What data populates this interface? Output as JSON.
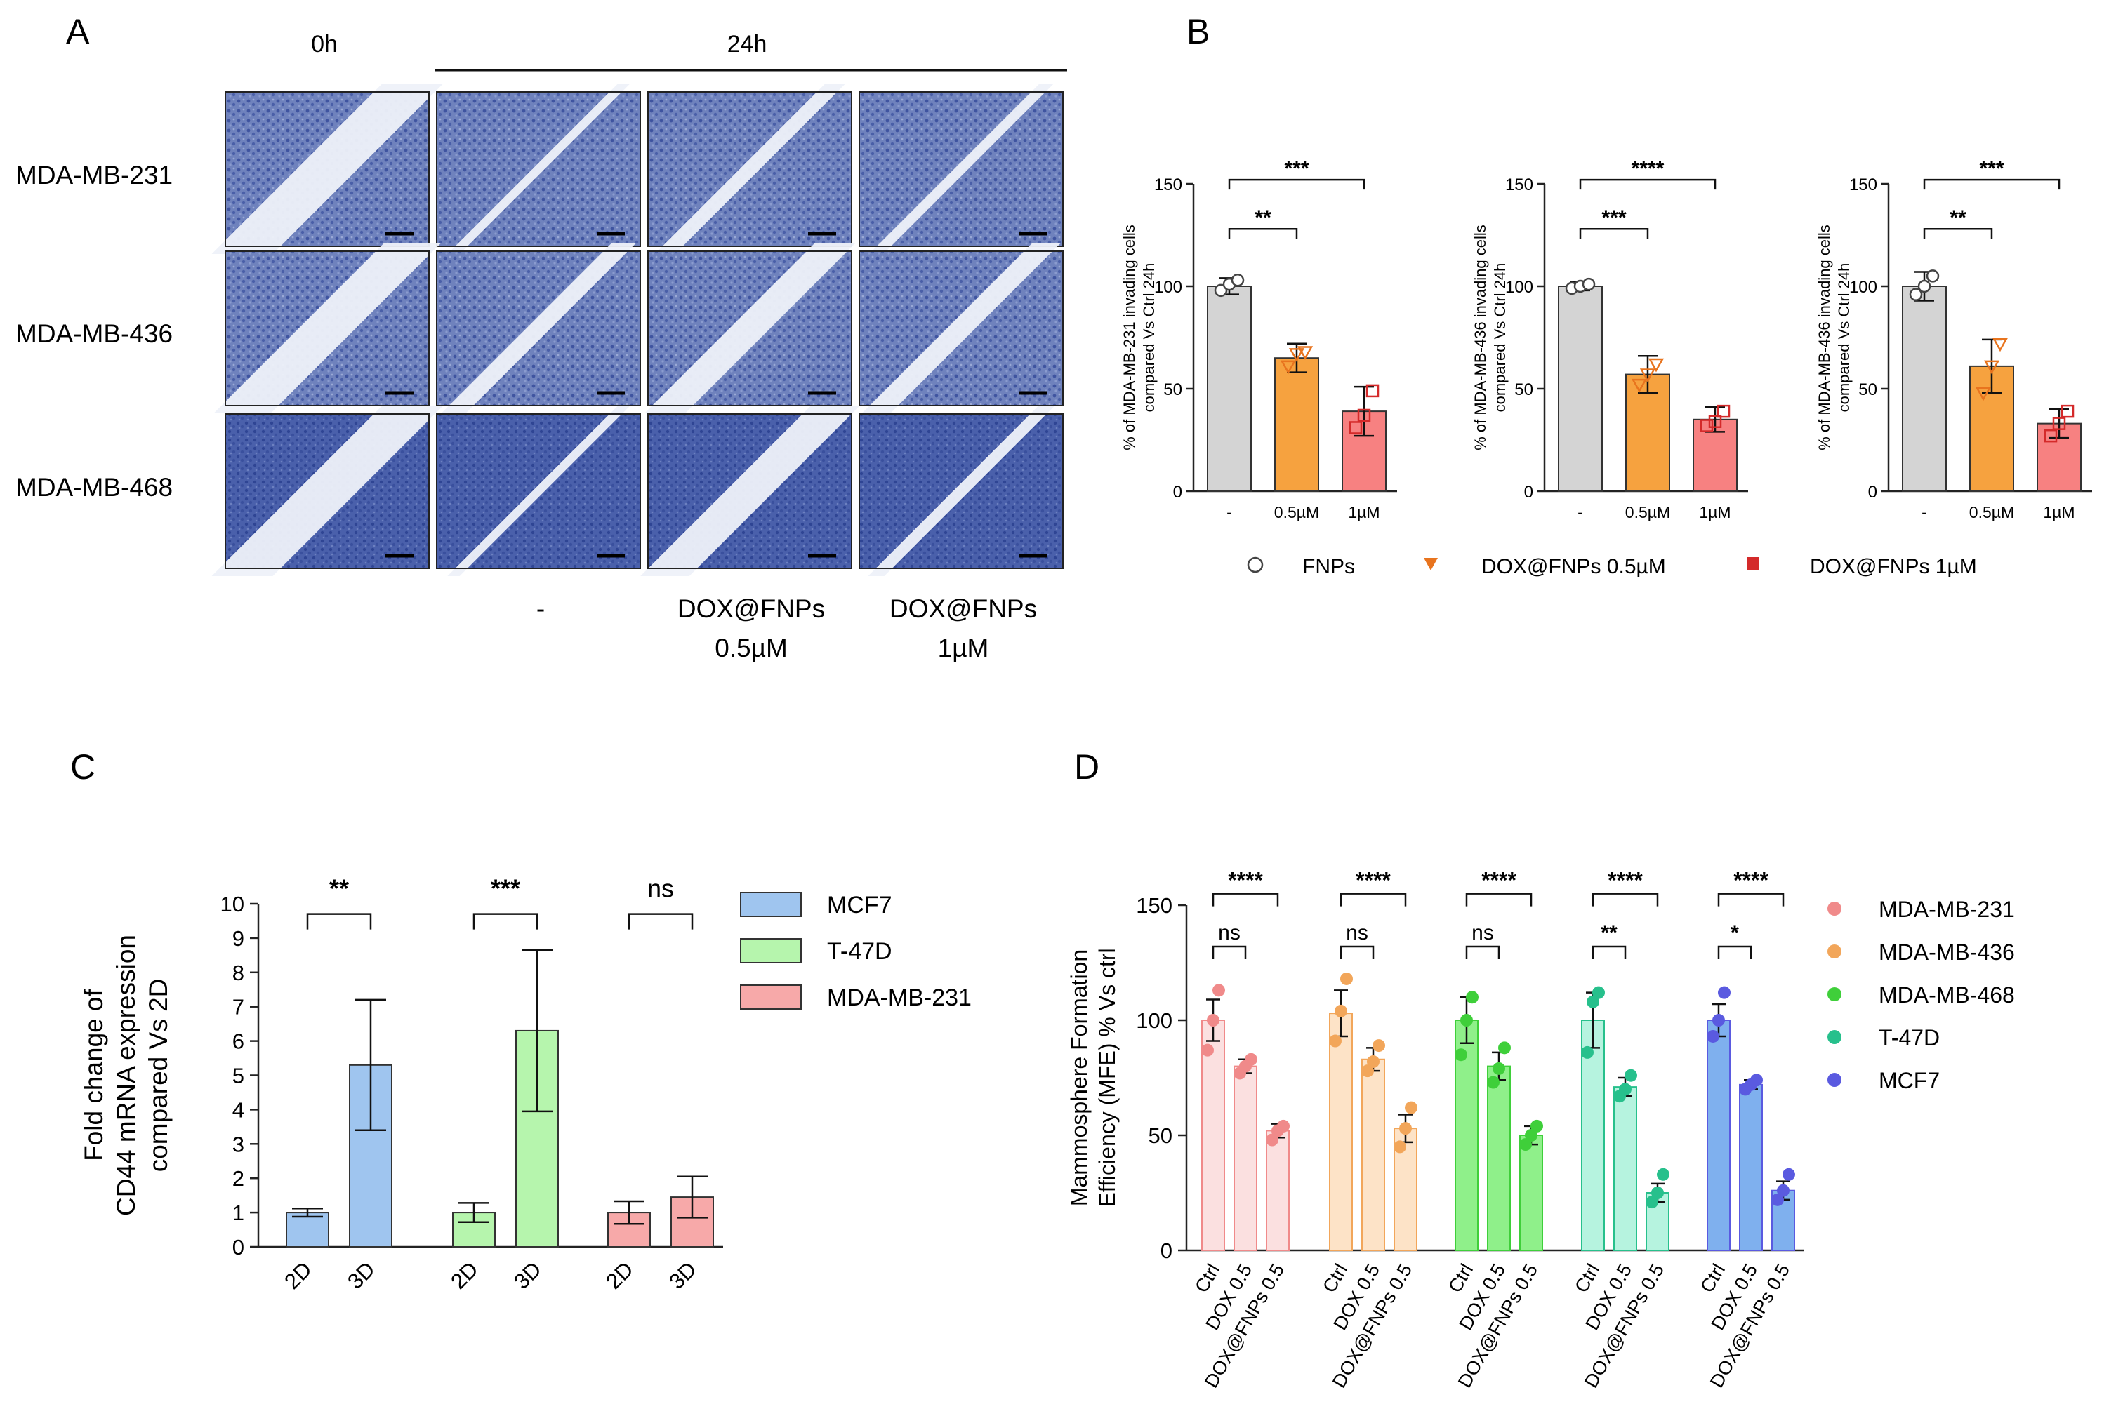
{
  "panel_letters": [
    "A",
    "B",
    "C",
    "D"
  ],
  "panel_a": {
    "time_labels": [
      "0h",
      "24h"
    ],
    "row_labels": [
      "MDA-MB-231",
      "MDA-MB-436",
      "MDA-MB-468"
    ],
    "treatment_labels": [
      {
        "line1": "-",
        "line2": ""
      },
      {
        "line1": "DOX@FNPs",
        "line2": "0.5µM"
      },
      {
        "line1": "DOX@FNPs",
        "line2": "1µM"
      }
    ]
  },
  "panel_b_legend": [
    {
      "label": "FNPs",
      "marker": "circle",
      "color": "#ffffff"
    },
    {
      "label": "DOX@FNPs 0.5µM",
      "marker": "triangle-down",
      "color": "#e8741e"
    },
    {
      "label": "DOX@FNPs 1µM",
      "marker": "square",
      "color": "#d42a2a"
    }
  ],
  "panel_c_legend": [
    {
      "label": "MCF7",
      "color": "#9fc5ef"
    },
    {
      "label": "T-47D",
      "color": "#b6f5ad"
    },
    {
      "label": "MDA-MB-231",
      "color": "#f7a9a9"
    }
  ],
  "panel_d_legend": [
    {
      "label": "MDA-MB-231",
      "color": "#f08a8a"
    },
    {
      "label": "MDA-MB-436",
      "color": "#f2a65a"
    },
    {
      "label": "MDA-MB-468",
      "color": "#3fcf3a"
    },
    {
      "label": "T-47D",
      "color": "#27c08c"
    },
    {
      "label": "MCF7",
      "color": "#5a5ae0"
    }
  ],
  "chart_data": [
    {
      "type": "bar",
      "panel": "B1",
      "ylabel": [
        "% of MDA-MB-231 invading cells",
        "compared Vs Ctrl 24h"
      ],
      "categories": [
        "-",
        "0.5µM",
        "1µM"
      ],
      "ylim": [
        0,
        150
      ],
      "yticks": [
        0,
        50,
        100,
        150
      ],
      "values": [
        100,
        65,
        39
      ],
      "errors": [
        4,
        7,
        12
      ],
      "points": [
        [
          98,
          101,
          103
        ],
        [
          61,
          67,
          68
        ],
        [
          31,
          37,
          49
        ]
      ],
      "colors": [
        "#d4d4d4",
        "#f6a23f",
        "#f78181"
      ],
      "point_colors": [
        "#ffffff",
        "#e8741e",
        "#d42a2a"
      ],
      "markers": [
        "circle",
        "triangle-down",
        "square"
      ],
      "significance": [
        {
          "from": 0,
          "to": 1,
          "label": "**"
        },
        {
          "from": 0,
          "to": 2,
          "label": "***"
        }
      ]
    },
    {
      "type": "bar",
      "panel": "B2",
      "ylabel": [
        "% of MDA-MB-436 invading cells",
        "compared Vs Ctrl 24h"
      ],
      "categories": [
        "-",
        "0.5µM",
        "1µM"
      ],
      "ylim": [
        0,
        150
      ],
      "yticks": [
        0,
        50,
        100,
        150
      ],
      "values": [
        100,
        57,
        35
      ],
      "errors": [
        2,
        9,
        6
      ],
      "points": [
        [
          99,
          100,
          101
        ],
        [
          52,
          57,
          62
        ],
        [
          32,
          34,
          39
        ]
      ],
      "colors": [
        "#d4d4d4",
        "#f6a23f",
        "#f78181"
      ],
      "point_colors": [
        "#ffffff",
        "#e8741e",
        "#d42a2a"
      ],
      "markers": [
        "circle",
        "triangle-down",
        "square"
      ],
      "significance": [
        {
          "from": 0,
          "to": 1,
          "label": "***"
        },
        {
          "from": 0,
          "to": 2,
          "label": "****"
        }
      ]
    },
    {
      "type": "bar",
      "panel": "B3",
      "ylabel": [
        "% of MDA-MB-436 invading cells",
        "compared Vs Ctrl 24h"
      ],
      "categories": [
        "-",
        "0.5µM",
        "1µM"
      ],
      "ylim": [
        0,
        150
      ],
      "yticks": [
        0,
        50,
        100,
        150
      ],
      "values": [
        100,
        61,
        33
      ],
      "errors": [
        7,
        13,
        7
      ],
      "points": [
        [
          96,
          100,
          105
        ],
        [
          48,
          61,
          72
        ],
        [
          27,
          33,
          39
        ]
      ],
      "colors": [
        "#d4d4d4",
        "#f6a23f",
        "#f78181"
      ],
      "point_colors": [
        "#ffffff",
        "#e8741e",
        "#d42a2a"
      ],
      "markers": [
        "circle",
        "triangle-down",
        "square"
      ],
      "significance": [
        {
          "from": 0,
          "to": 1,
          "label": "**"
        },
        {
          "from": 0,
          "to": 2,
          "label": "***"
        }
      ]
    },
    {
      "type": "bar",
      "panel": "C",
      "ylabel": [
        "Fold change of",
        "CD44 mRNA expression",
        "compared Vs 2D"
      ],
      "ylim": [
        0,
        10
      ],
      "yticks": [
        0,
        1,
        2,
        3,
        4,
        5,
        6,
        7,
        8,
        9,
        10
      ],
      "groups": [
        {
          "name": "MCF7",
          "categories": [
            "2D",
            "3D"
          ],
          "values": [
            1.0,
            5.3
          ],
          "errors": [
            0.12,
            1.9
          ],
          "color": "#9fc5ef",
          "significance": "**"
        },
        {
          "name": "T-47D",
          "categories": [
            "2D",
            "3D"
          ],
          "values": [
            1.0,
            6.3
          ],
          "errors": [
            0.28,
            2.35
          ],
          "color": "#b6f5ad",
          "significance": "***"
        },
        {
          "name": "MDA-MB-231",
          "categories": [
            "2D",
            "3D"
          ],
          "values": [
            1.0,
            1.45
          ],
          "errors": [
            0.33,
            0.6
          ],
          "color": "#f7a9a9",
          "significance": "ns"
        }
      ]
    },
    {
      "type": "bar",
      "panel": "D",
      "ylabel": [
        "Mammosphere Formation",
        "Efficiency (MFE) % Vs ctrl"
      ],
      "ylim": [
        0,
        150
      ],
      "yticks": [
        0,
        50,
        100,
        150
      ],
      "categories": [
        "Ctrl",
        "DOX 0.5",
        "DOX@FNPs 0.5"
      ],
      "groups": [
        {
          "name": "MDA-MB-231",
          "fill": "#fbe0e0",
          "dot": "#f08a8a",
          "values": [
            100,
            80,
            52
          ],
          "errors": [
            9,
            3,
            3
          ],
          "points": [
            [
              87,
              100,
              113
            ],
            [
              77,
              80,
              83
            ],
            [
              48,
              52,
              54
            ]
          ],
          "sig_small": "ns",
          "sig_big": "****"
        },
        {
          "name": "MDA-MB-436",
          "fill": "#fde3c7",
          "dot": "#f2a65a",
          "values": [
            103,
            83,
            53
          ],
          "errors": [
            10,
            5,
            6
          ],
          "points": [
            [
              91,
              104,
              118
            ],
            [
              78,
              82,
              89
            ],
            [
              45,
              53,
              62
            ]
          ],
          "sig_small": "ns",
          "sig_big": "****"
        },
        {
          "name": "MDA-MB-468",
          "fill": "#8ff08a",
          "dot": "#3fcf3a",
          "values": [
            100,
            80,
            50
          ],
          "errors": [
            10,
            6,
            4
          ],
          "points": [
            [
              85,
              100,
              110
            ],
            [
              73,
              79,
              88
            ],
            [
              46,
              50,
              54
            ]
          ],
          "sig_small": "ns",
          "sig_big": "****"
        },
        {
          "name": "T-47D",
          "fill": "#b6f3df",
          "dot": "#27c08c",
          "values": [
            100,
            71,
            25
          ],
          "errors": [
            12,
            4,
            4
          ],
          "points": [
            [
              86,
              108,
              112
            ],
            [
              67,
              70,
              76
            ],
            [
              21,
              25,
              33
            ]
          ],
          "sig_small": "**",
          "sig_big": "****"
        },
        {
          "name": "MCF7",
          "fill": "#7fb0ee",
          "dot": "#5a5ae0",
          "values": [
            100,
            72,
            26
          ],
          "errors": [
            7,
            2,
            4
          ],
          "points": [
            [
              93,
              100,
              112
            ],
            [
              70,
              72,
              74
            ],
            [
              22,
              26,
              33
            ]
          ],
          "sig_small": "*",
          "sig_big": "****"
        }
      ]
    }
  ]
}
